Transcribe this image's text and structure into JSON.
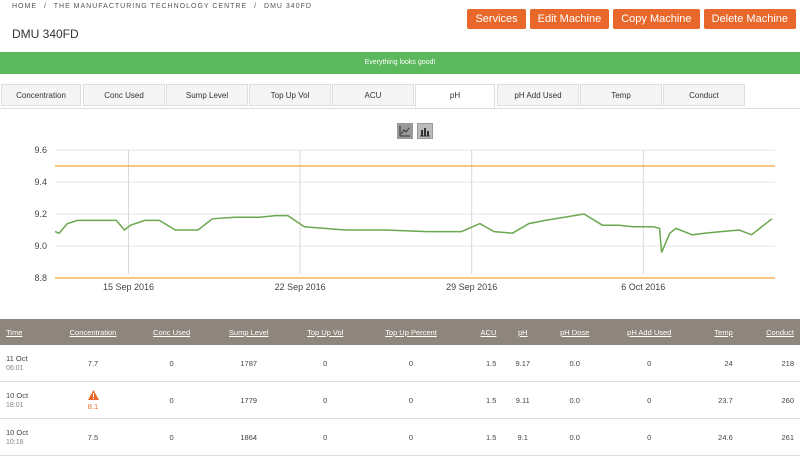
{
  "breadcrumb": [
    "Home",
    "/",
    "The Manufacturing Technology Centre",
    "/",
    "DMU 340FD"
  ],
  "title": "DMU 340FD",
  "buttons": {
    "services": "Services",
    "edit": "Edit Machine",
    "copy": "Copy Machine",
    "delete": "Delete Machine"
  },
  "banner": "Everything looks good!",
  "tabs": [
    "Concentration",
    "Conc Used",
    "Sump Level",
    "Top Up Vol",
    "ACU",
    "pH",
    "pH Add Used",
    "Temp",
    "Conduct"
  ],
  "active_tab": "pH",
  "chart_toggle": {
    "line": "line-chart-icon",
    "bar": "bar-chart-icon"
  },
  "chart_data": {
    "type": "line",
    "title": "",
    "xlabel": "",
    "ylabel": "",
    "ylim": [
      8.8,
      9.6
    ],
    "yticks": [
      "9.6",
      "9.4",
      "9.2",
      "9.0",
      "8.8"
    ],
    "xticks": [
      "15 Sep 2016",
      "22 Sep 2016",
      "29 Sep 2016",
      "6 Oct 2016"
    ],
    "xtick_dates": [
      "2016-09-15",
      "2016-09-22",
      "2016-09-29",
      "2016-10-06"
    ],
    "limits": [
      9.5,
      8.8
    ],
    "series": [
      {
        "color": "#6aa84f",
        "points": [
          [
            "2016-09-12 00:00",
            9.09
          ],
          [
            "2016-09-12 04:00",
            9.08
          ],
          [
            "2016-09-12 12:00",
            9.14
          ],
          [
            "2016-09-12 22:00",
            9.16
          ],
          [
            "2016-09-14 12:00",
            9.16
          ],
          [
            "2016-09-14 20:00",
            9.1
          ],
          [
            "2016-09-15 02:00",
            9.13
          ],
          [
            "2016-09-15 16:00",
            9.16
          ],
          [
            "2016-09-16 06:00",
            9.16
          ],
          [
            "2016-09-16 22:00",
            9.1
          ],
          [
            "2016-09-17 20:00",
            9.1
          ],
          [
            "2016-09-18 10:00",
            9.17
          ],
          [
            "2016-09-19 08:00",
            9.18
          ],
          [
            "2016-09-20 08:00",
            9.18
          ],
          [
            "2016-09-21 00:00",
            9.19
          ],
          [
            "2016-09-21 12:00",
            9.19
          ],
          [
            "2016-09-22 04:00",
            9.12
          ],
          [
            "2016-09-23 20:00",
            9.1
          ],
          [
            "2016-09-25 12:00",
            9.1
          ],
          [
            "2016-09-27 04:00",
            9.09
          ],
          [
            "2016-09-28 14:00",
            9.09
          ],
          [
            "2016-09-29 08:00",
            9.14
          ],
          [
            "2016-09-29 22:00",
            9.09
          ],
          [
            "2016-09-30 16:00",
            9.08
          ],
          [
            "2016-10-01 08:00",
            9.14
          ],
          [
            "2016-10-02 00:00",
            9.16
          ],
          [
            "2016-10-03 14:00",
            9.2
          ],
          [
            "2016-10-04 08:00",
            9.13
          ],
          [
            "2016-10-05 00:00",
            9.13
          ],
          [
            "2016-10-05 14:00",
            9.12
          ],
          [
            "2016-10-06 00:00",
            9.12
          ],
          [
            "2016-10-06 10:00",
            9.12
          ],
          [
            "2016-10-06 16:00",
            9.11
          ],
          [
            "2016-10-06 18:00",
            8.96
          ],
          [
            "2016-10-07 02:00",
            9.08
          ],
          [
            "2016-10-07 08:00",
            9.11
          ],
          [
            "2016-10-08 00:00",
            9.07
          ],
          [
            "2016-10-08 12:00",
            9.08
          ],
          [
            "2016-10-09 04:00",
            9.09
          ],
          [
            "2016-10-09 22:00",
            9.1
          ],
          [
            "2016-10-10 10:00",
            9.07
          ],
          [
            "2016-10-10 18:01",
            9.11
          ],
          [
            "2016-10-11 06:01",
            9.17
          ]
        ]
      }
    ]
  },
  "table": {
    "headers": [
      "Time",
      "Concentration",
      "Conc Used",
      "Sump Level",
      "Top Up Vol",
      "Top Up Percent",
      "ACU",
      "pH",
      "pH Dose",
      "pH Add Used",
      "Temp",
      "Conduct"
    ],
    "rows": [
      {
        "date": "11 Oct",
        "time": "06:01",
        "conc": "7.7",
        "warn": false,
        "conc_used": "0",
        "sump": "1787",
        "topup_vol": "0",
        "topup_pct": "0",
        "acu": "1.5",
        "ph": "9.17",
        "ph_dose": "0.0",
        "ph_add": "0",
        "temp": "24",
        "conduct": "218"
      },
      {
        "date": "10 Oct",
        "time": "18:01",
        "conc": "8.1",
        "warn": true,
        "conc_used": "0",
        "sump": "1779",
        "topup_vol": "0",
        "topup_pct": "0",
        "acu": "1.5",
        "ph": "9.11",
        "ph_dose": "0.0",
        "ph_add": "0",
        "temp": "23.7",
        "conduct": "260"
      },
      {
        "date": "10 Oct",
        "time": "10:18",
        "conc": "7.5",
        "warn": false,
        "conc_used": "0",
        "sump": "1864",
        "topup_vol": "0",
        "topup_pct": "0",
        "acu": "1.5",
        "ph": "9.1",
        "ph_dose": "0.0",
        "ph_add": "0",
        "temp": "24.6",
        "conduct": "261"
      }
    ]
  }
}
